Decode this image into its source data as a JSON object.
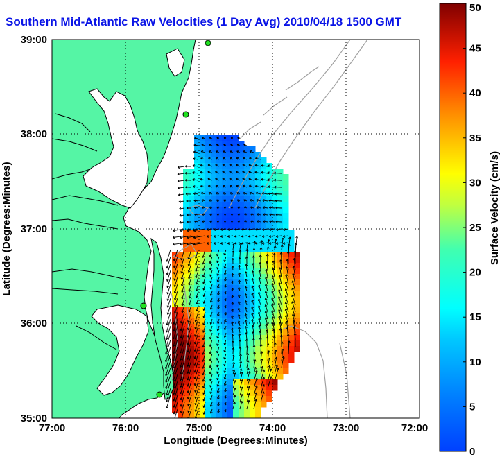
{
  "title": "Southern Mid-Atlantic Raw Velocities (1 Day Avg) 2010/04/18 1500 GMT",
  "colors": {
    "land": "#55f5a5",
    "title": "#0a14e6",
    "coast": "#000000",
    "bathymetry": "#a0a0a0",
    "station": "#20e020"
  },
  "map": {
    "xlabel": "Longitude (Degrees:Minutes)",
    "ylabel": "Latitude (Degrees:Minutes)",
    "lon_ticks": [
      "77:00",
      "76:00",
      "75:00",
      "74:00",
      "73:00",
      "72:00"
    ],
    "lat_ticks": [
      "35:00",
      "36:00",
      "37:00",
      "38:00",
      "39:00"
    ],
    "lon_range_deg_west": [
      77,
      72
    ],
    "lat_range_deg_north": [
      35,
      39
    ],
    "grid": true
  },
  "colorbar": {
    "label": "Surface Velocity (cm/s)",
    "ticks": [
      "0",
      "5",
      "10",
      "15",
      "20",
      "25",
      "30",
      "35",
      "40",
      "45",
      "50"
    ],
    "range": [
      0,
      50
    ],
    "colormap": "jet"
  },
  "station_markers": [
    {
      "lon": 75.0,
      "lat": 39.0
    },
    {
      "lon": 75.08,
      "lat": 38.2
    },
    {
      "lon": 75.68,
      "lat": 36.18
    },
    {
      "lon": 75.47,
      "lat": 35.24
    }
  ]
}
